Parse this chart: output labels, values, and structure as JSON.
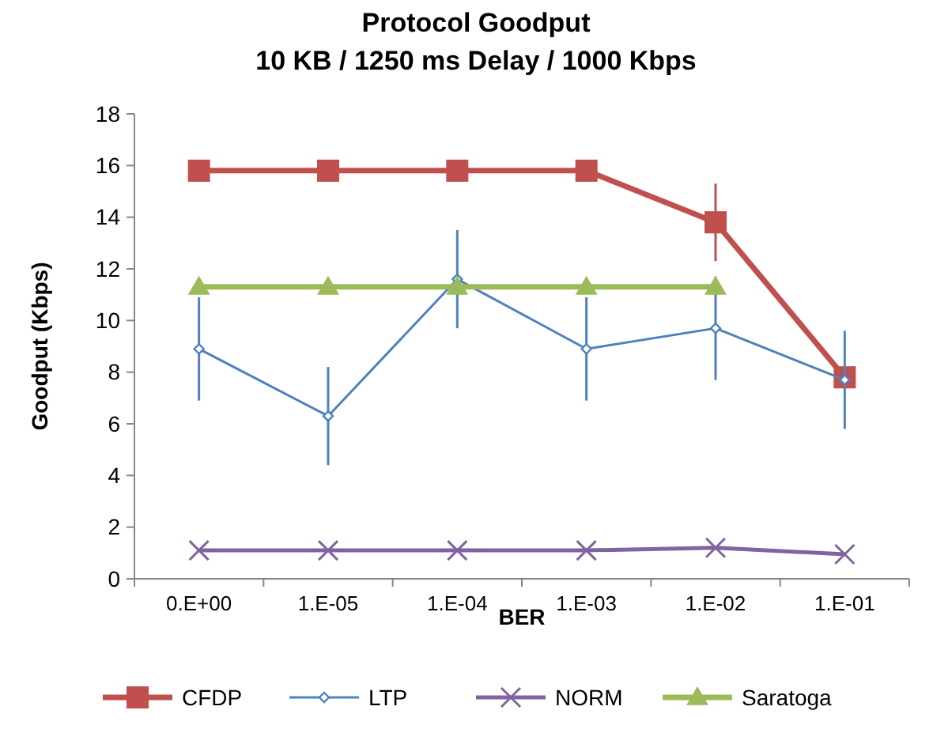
{
  "chart_data": {
    "type": "line",
    "title": "Protocol Goodput",
    "subtitle": "10 KB / 1250 ms Delay / 1000 Kbps",
    "xlabel": "BER",
    "ylabel": "Goodput (Kbps)",
    "categories": [
      "0.E+00",
      "1.E-05",
      "1.E-04",
      "1.E-03",
      "1.E-02",
      "1.E-01"
    ],
    "ylim": [
      0,
      18
    ],
    "yticks": [
      0,
      2,
      4,
      6,
      8,
      10,
      12,
      14,
      16,
      18
    ],
    "grid": false,
    "legend": "bottom",
    "series": [
      {
        "name": "CFDP",
        "color": "#c0504d",
        "values": [
          15.8,
          15.8,
          15.8,
          15.8,
          13.8,
          7.8
        ],
        "errors": [
          null,
          null,
          null,
          null,
          1.5,
          null
        ],
        "marker": "square"
      },
      {
        "name": "LTP",
        "color": "#4f81bd",
        "values": [
          8.9,
          6.3,
          11.6,
          8.9,
          9.7,
          7.7
        ],
        "errors": [
          2,
          1.9,
          1.9,
          2,
          2,
          1.9
        ],
        "marker": "diamond"
      },
      {
        "name": "NORM",
        "color": "#8064a2",
        "values": [
          1.1,
          1.1,
          1.1,
          1.1,
          1.2,
          0.95
        ],
        "marker": "cross"
      },
      {
        "name": "Saratoga",
        "color": "#9bbb59",
        "values": [
          11.3,
          11.3,
          11.3,
          11.3,
          11.3,
          null
        ],
        "marker": "triangle"
      }
    ]
  }
}
